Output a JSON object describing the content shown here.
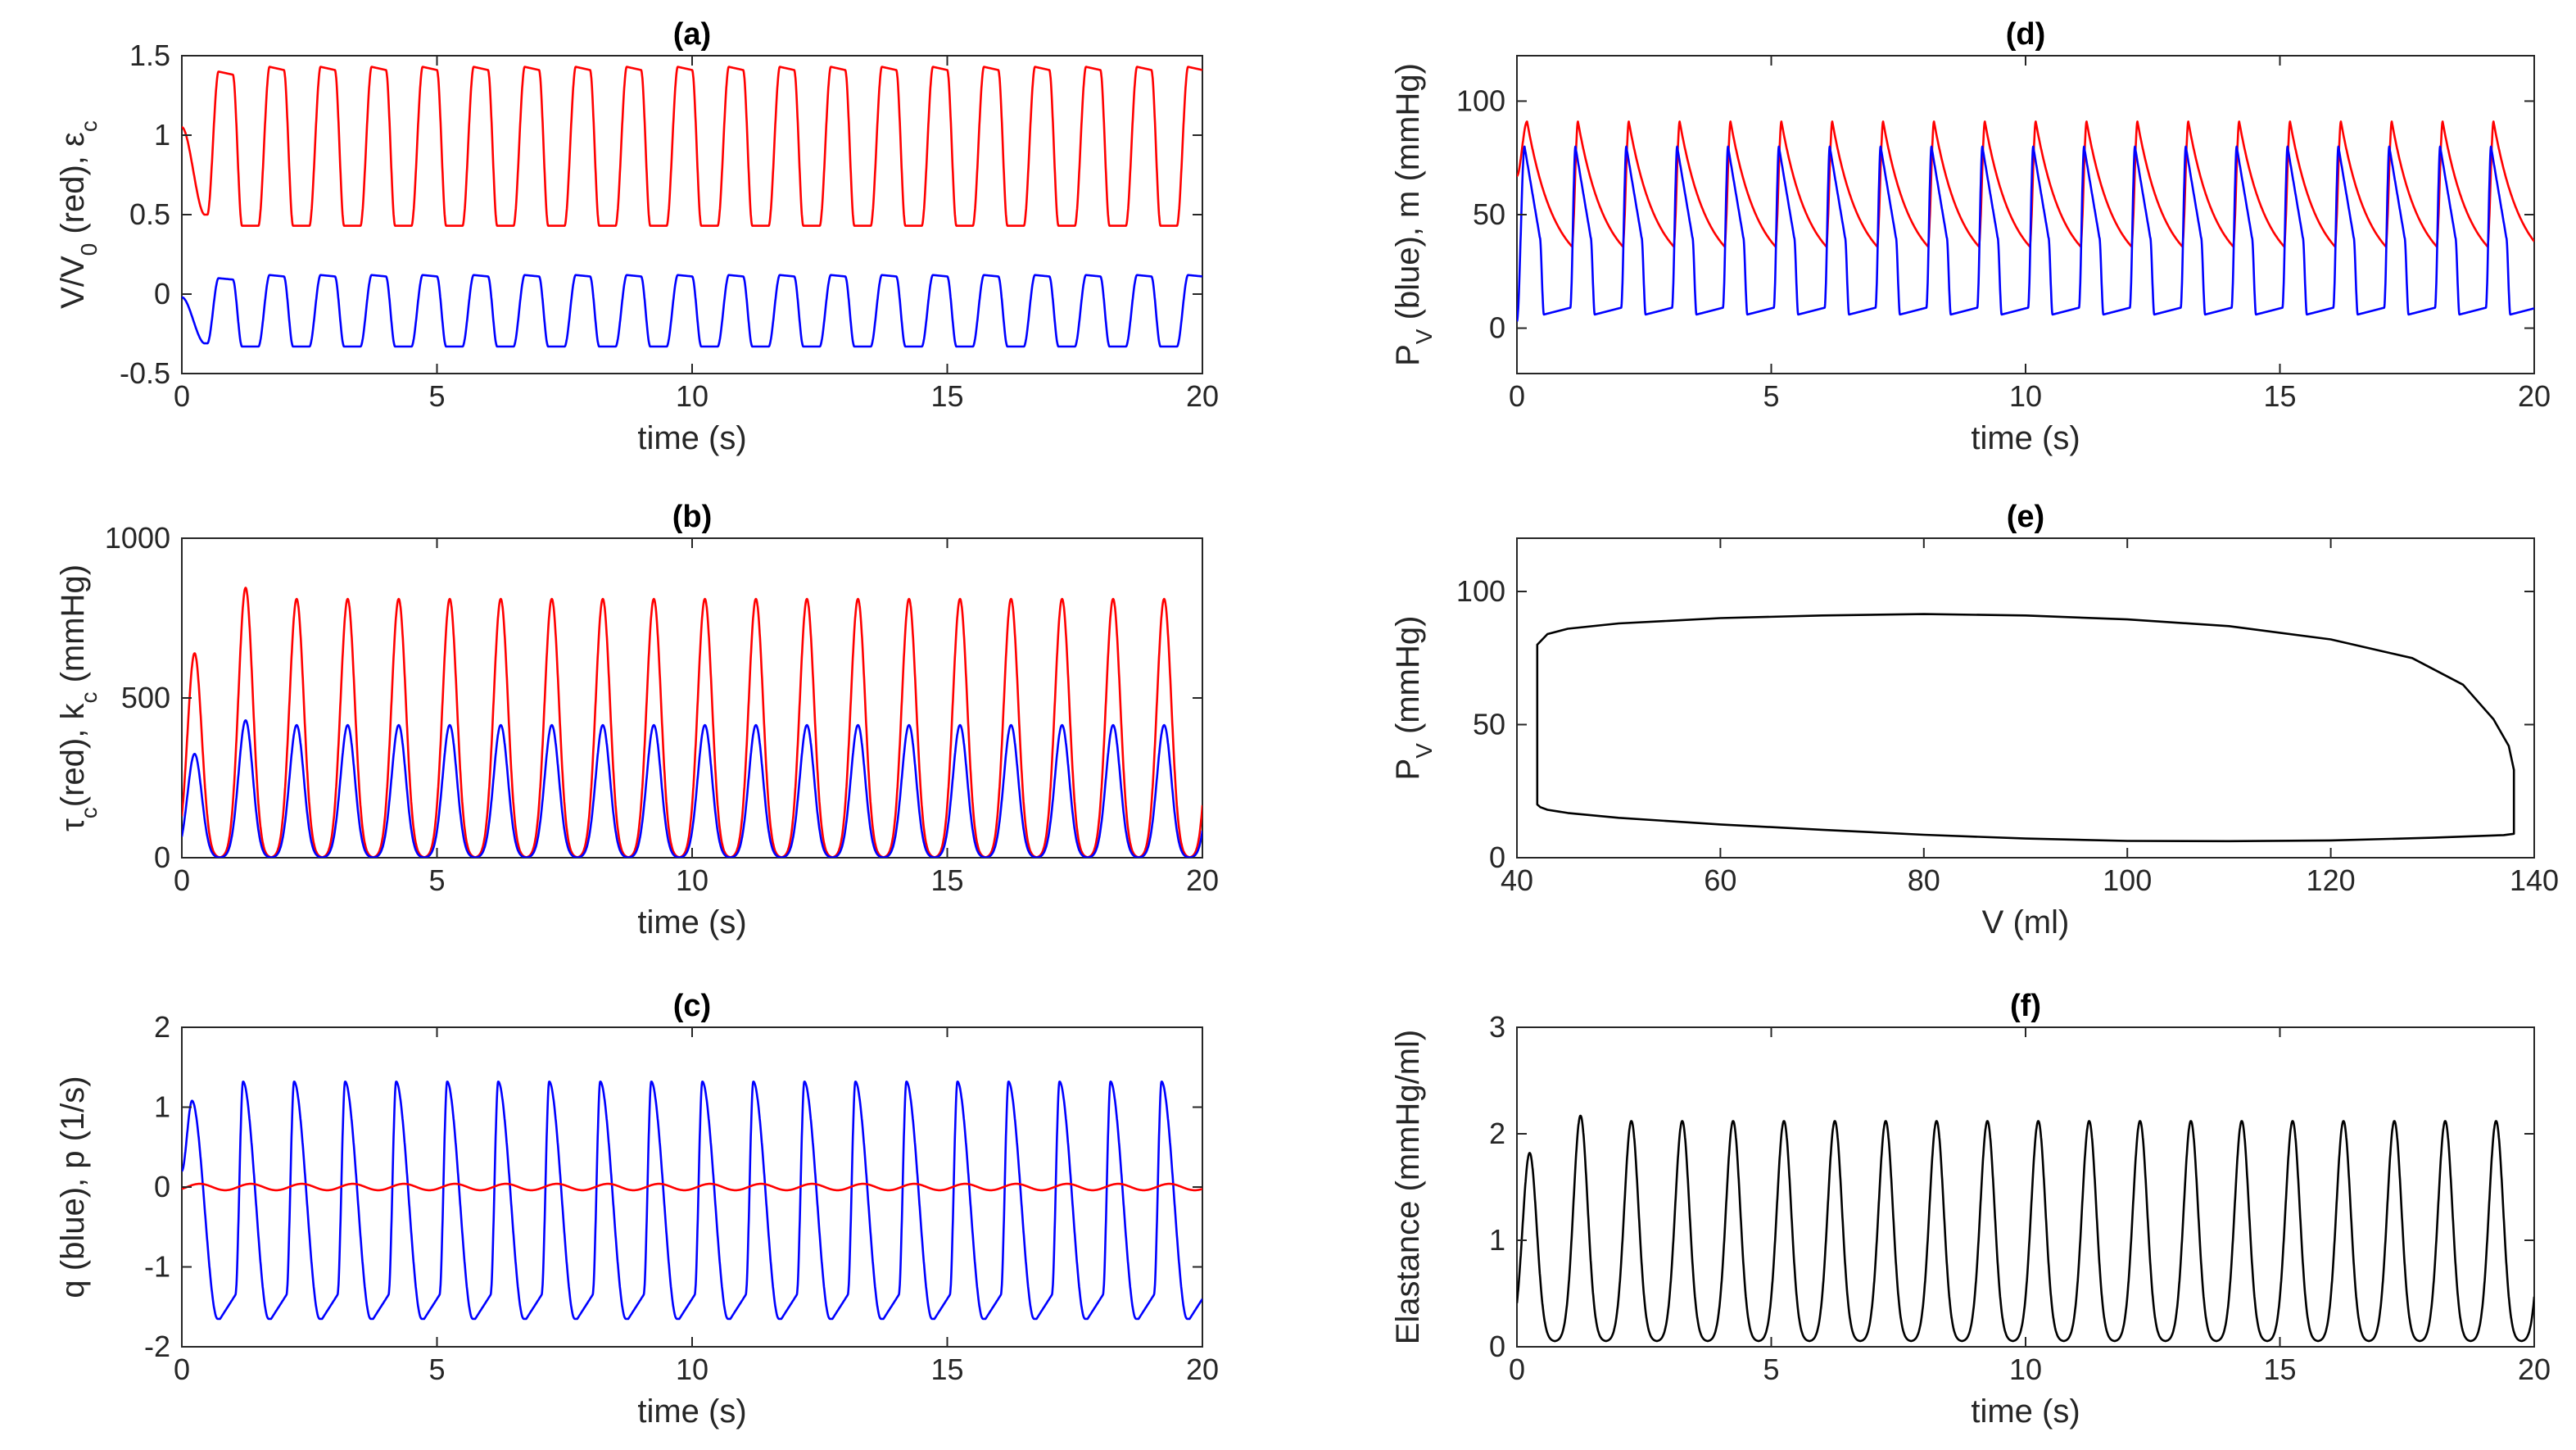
{
  "figure": {
    "name": "six-panel-cardiac-simulation"
  },
  "chart_data": [
    {
      "id": "a",
      "type": "line",
      "title": "(a)",
      "xlabel": "time (s)",
      "ylabel": {
        "main": "V/V",
        "sub": "0",
        "rest": " (red), ",
        "sym": "ε",
        "sym_sub": "c"
      },
      "xlim": [
        0,
        20
      ],
      "ylim": [
        -0.5,
        1.5
      ],
      "xticks": [
        0,
        5,
        10,
        15,
        20
      ],
      "yticks": [
        -0.5,
        0,
        0.5,
        1,
        1.5
      ],
      "xtick_labels": [
        "0",
        "5",
        "10",
        "15",
        "20"
      ],
      "ytick_labels": [
        "-0.5",
        "0",
        "0.5",
        "1",
        "1.5"
      ],
      "series": [
        {
          "name": "V/V0",
          "color": "#ff0000",
          "kind": "volume",
          "t0": 0.17,
          "tmax": 0.78,
          "tmin": 0.97,
          "vmax": 1.43,
          "vmin": 0.43,
          "start": 1.05,
          "first_min": 0.5,
          "first_peak": 1.4
        },
        {
          "name": "epsilon_c",
          "color": "#0000ff",
          "kind": "volume",
          "t0": 0.17,
          "tmax": 0.78,
          "tmin": 0.97,
          "vmax": 0.12,
          "vmin": -0.33,
          "start": -0.02,
          "first_min": -0.31,
          "first_peak": 0.1
        }
      ]
    },
    {
      "id": "b",
      "type": "line",
      "title": "(b)",
      "xlabel": "time (s)",
      "ylabel": {
        "sym": "τ",
        "sym_sub": "c",
        "main": "(red), k",
        "sub": "c",
        "rest": " (mmHg)"
      },
      "xlim": [
        0,
        20
      ],
      "ylim": [
        0,
        1000
      ],
      "xticks": [
        0,
        5,
        10,
        15,
        20
      ],
      "yticks": [
        0,
        500,
        1000
      ],
      "xtick_labels": [
        "0",
        "5",
        "10",
        "15",
        "20"
      ],
      "ytick_labels": [
        "0",
        "500",
        "1000"
      ],
      "series": [
        {
          "name": "tau_c",
          "color": "#ff0000",
          "kind": "pulse",
          "peak": 810,
          "base": 0,
          "first_peak": 640,
          "second_peak": 845
        },
        {
          "name": "k_c",
          "color": "#0000ff",
          "kind": "pulse",
          "peak": 415,
          "base": 0,
          "first_peak": 325,
          "second_peak": 430
        }
      ]
    },
    {
      "id": "c",
      "type": "line",
      "title": "(c)",
      "xlabel": "time (s)",
      "ylabel": {
        "main": "q (blue), p (1/s)"
      },
      "xlim": [
        0,
        20
      ],
      "ylim": [
        -2,
        2
      ],
      "xticks": [
        0,
        5,
        10,
        15,
        20
      ],
      "yticks": [
        -2,
        -1,
        0,
        1,
        2
      ],
      "xtick_labels": [
        "0",
        "5",
        "10",
        "15",
        "20"
      ],
      "ytick_labels": [
        "-2",
        "-1",
        "0",
        "1",
        "2"
      ],
      "series": [
        {
          "name": "q",
          "color": "#0000ff",
          "kind": "flow",
          "vmax": 1.32,
          "vmin": -1.65,
          "first_peak": 1.08
        },
        {
          "name": "p",
          "color": "#ff0000",
          "kind": "ripple",
          "mean": 0.0,
          "amp": 0.04
        }
      ]
    },
    {
      "id": "d",
      "type": "line",
      "title": "(d)",
      "xlabel": "time (s)",
      "ylabel": {
        "main": "P",
        "sub": "V",
        "rest": " (blue), m (mmHg)"
      },
      "xlim": [
        0,
        20
      ],
      "ylim": [
        -20,
        120
      ],
      "xticks": [
        0,
        5,
        10,
        15,
        20
      ],
      "yticks": [
        0,
        50,
        100
      ],
      "xtick_labels": [
        "0",
        "5",
        "10",
        "15",
        "20"
      ],
      "ytick_labels": [
        "0",
        "50",
        "100"
      ],
      "series": [
        {
          "name": "m",
          "color": "#ff0000",
          "kind": "aortic",
          "peak": 91,
          "trough": 36,
          "start": 67
        },
        {
          "name": "P_V",
          "color": "#0000ff",
          "kind": "ventricular",
          "peak": 80,
          "base": 6,
          "start": 3
        }
      ]
    },
    {
      "id": "e",
      "type": "line",
      "title": "(e)",
      "xlabel": "V (ml)",
      "ylabel": {
        "main": "P",
        "sub": "V",
        "rest": " (mmHg)"
      },
      "xlim": [
        40,
        140
      ],
      "ylim": [
        0,
        120
      ],
      "xticks": [
        40,
        60,
        80,
        100,
        120,
        140
      ],
      "yticks": [
        0,
        50,
        100
      ],
      "xtick_labels": [
        "40",
        "60",
        "80",
        "100",
        "120",
        "140"
      ],
      "ytick_labels": [
        "0",
        "50",
        "100"
      ],
      "series": [
        {
          "name": "PV-loop",
          "color": "#000000",
          "kind": "xy",
          "x": [
            42,
            42,
            43,
            45,
            50,
            55,
            60,
            70,
            80,
            90,
            100,
            110,
            120,
            128,
            133,
            136,
            137.5,
            138,
            138,
            137,
            130,
            120,
            110,
            100,
            90,
            80,
            70,
            60,
            50,
            45,
            43,
            42.3,
            42,
            42
          ],
          "y": [
            22,
            80,
            84,
            86,
            88,
            89,
            90,
            91,
            91.5,
            91,
            89.5,
            87,
            82,
            75,
            65,
            52,
            42,
            33,
            9,
            8.5,
            7.5,
            6.5,
            6.2,
            6.3,
            7.2,
            8.6,
            10.5,
            12.5,
            15,
            16.8,
            18,
            19,
            20,
            22
          ]
        }
      ]
    },
    {
      "id": "f",
      "type": "line",
      "title": "(f)",
      "xlabel": "time (s)",
      "ylabel": {
        "main": "Elastance (mmHg/ml)"
      },
      "xlim": [
        0,
        20
      ],
      "ylim": [
        0,
        3
      ],
      "xticks": [
        0,
        5,
        10,
        15,
        20
      ],
      "yticks": [
        0,
        1,
        2,
        3
      ],
      "xtick_labels": [
        "0",
        "5",
        "10",
        "15",
        "20"
      ],
      "ytick_labels": [
        "0",
        "1",
        "2",
        "3"
      ],
      "series": [
        {
          "name": "Elastance",
          "color": "#000000",
          "kind": "pulse",
          "peak": 2.12,
          "base": 0.05,
          "first_peak": 1.82,
          "second_peak": 2.17
        }
      ]
    }
  ]
}
